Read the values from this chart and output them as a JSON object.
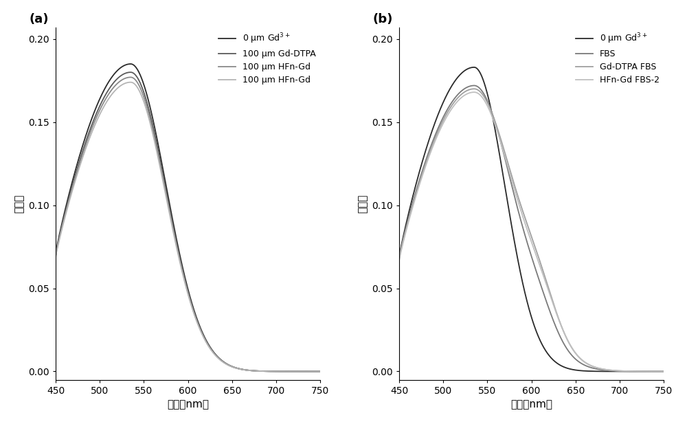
{
  "title_a": "(a)",
  "title_b": "(b)",
  "xlabel": "波长（nm）",
  "ylabel": "吸收值",
  "xlim": [
    450,
    750
  ],
  "ylim": [
    -0.005,
    0.207
  ],
  "xticks": [
    450,
    500,
    550,
    600,
    650,
    700,
    750
  ],
  "yticks": [
    0.0,
    0.05,
    0.1,
    0.15,
    0.2
  ],
  "legend_a_line1": "0 μm Gd",
  "legend_a_sup1": "3+",
  "legend_a": [
    "0 μm Gd$^{3+}$",
    "100 μm Gd-DTPA",
    "100 μm HFn-Gd",
    "100 μm HFn-Gd"
  ],
  "legend_b": [
    "0 μm Gd$^{3+}$",
    "FBS",
    "Gd-DTPA FBS",
    "HFn-Gd FBS-2"
  ],
  "colors_a": [
    "#2a2a2a",
    "#5a5a5a",
    "#8a8a8a",
    "#b5b5b5"
  ],
  "colors_b": [
    "#2a2a2a",
    "#7a7a7a",
    "#a0a0a0",
    "#c0c0c0"
  ],
  "lw": 1.3,
  "figsize": [
    10.0,
    6.17
  ],
  "dpi": 100
}
